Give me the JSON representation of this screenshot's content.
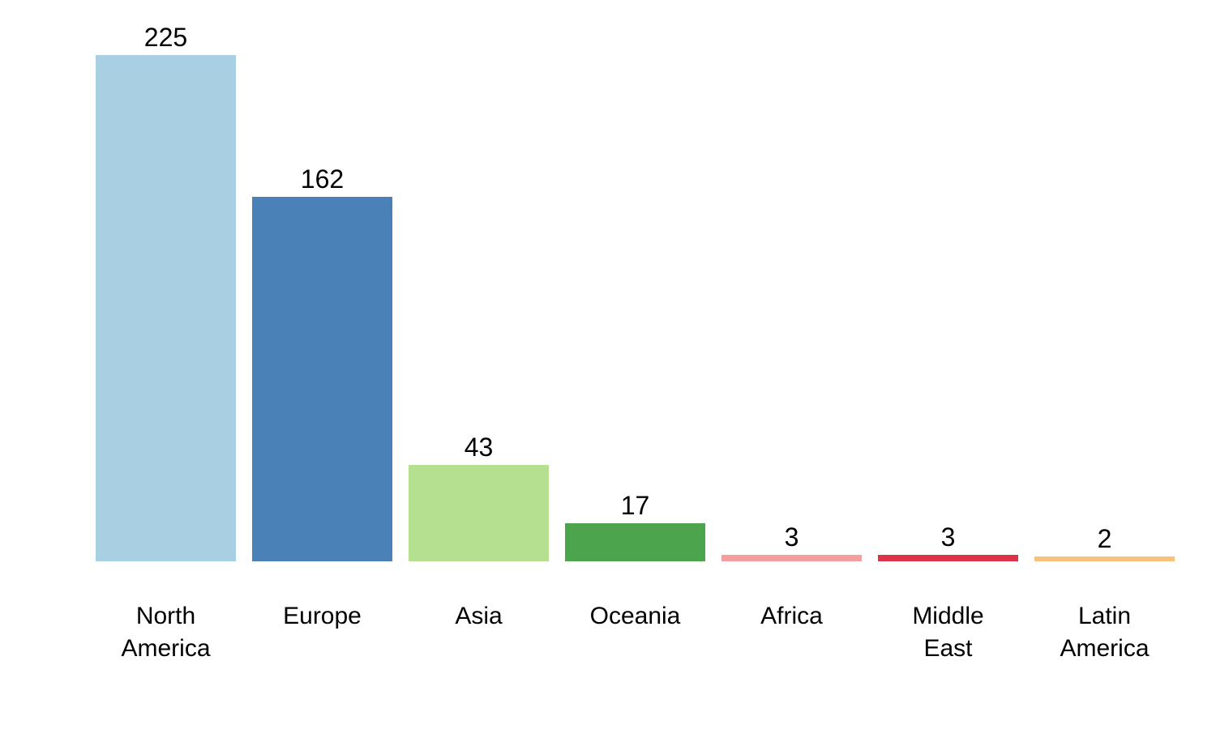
{
  "chart_data": {
    "type": "bar",
    "title": "",
    "xlabel": "",
    "ylabel": "",
    "categories": [
      "North America",
      "Europe",
      "Asia",
      "Oceania",
      "Africa",
      "Middle East",
      "Latin America"
    ],
    "tick_labels": [
      "North\nAmerica",
      "Europe",
      "Asia",
      "Oceania",
      "Africa",
      "Middle\nEast",
      "Latin\nAmerica"
    ],
    "values": [
      225,
      162,
      43,
      17,
      3,
      3,
      2
    ],
    "value_labels": [
      "225",
      "162",
      "43",
      "17",
      "3",
      "3",
      "2"
    ],
    "bar_colors": [
      "#A9CFE2",
      "#4A82B8",
      "#B5E090",
      "#4CA54D",
      "#F49F9E",
      "#DD3248",
      "#F9C27C"
    ],
    "ylim": [
      0,
      225
    ],
    "grid": false,
    "legend": false,
    "axis_lines": false,
    "background": "#FFFFFF",
    "text_color": "#000000"
  }
}
